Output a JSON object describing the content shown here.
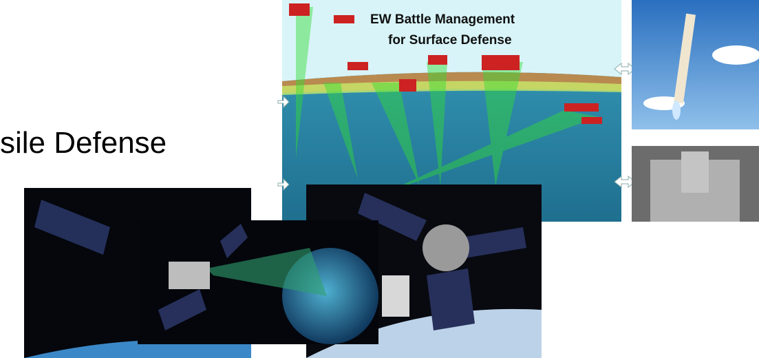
{
  "heading": "sile Defense",
  "diagram": {
    "title_line1": "EW Battle Management",
    "title_line2": "for Surface Defense"
  }
}
